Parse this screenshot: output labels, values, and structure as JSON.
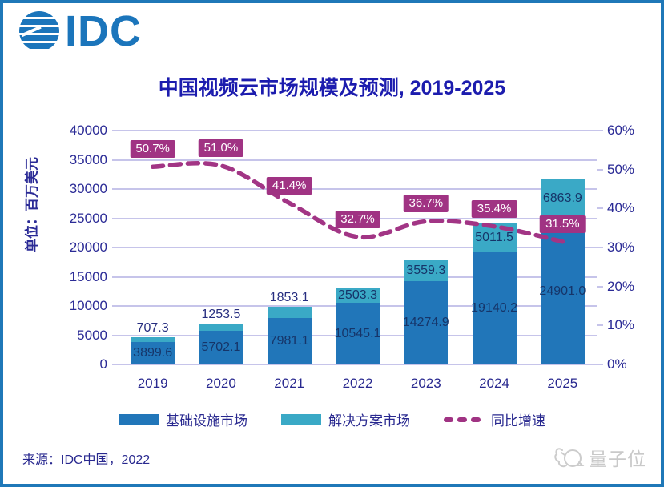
{
  "logo": {
    "text": "IDC"
  },
  "title": "中国视频云市场规模及预测, 2019-2025",
  "source": "来源：IDC中国，2022",
  "watermark": {
    "text": "量子位",
    "icon": "qbitai-bird-icon"
  },
  "colors": {
    "infra": "#2176b9",
    "solution": "#3aa9c6",
    "growth": "#a23585",
    "label_box": "#a03383",
    "grid": "#c6c4ea",
    "axis_text": "#2b2b96",
    "title_text": "#1c1cae",
    "border": "#1f78b8",
    "logo_blue": "#1b75bb",
    "watermark_gray": "#c9c9c9"
  },
  "chart_data": {
    "type": "bar",
    "subtype": "stacked-bar-with-line",
    "title": "中国视频云市场规模及预测, 2019-2025",
    "categories": [
      "2019",
      "2020",
      "2021",
      "2022",
      "2023",
      "2024",
      "2025"
    ],
    "series": [
      {
        "name": "基础设施市场",
        "kind": "bar",
        "axis": "left",
        "values": [
          3899.6,
          5702.1,
          7981.1,
          10545.1,
          14274.9,
          19140.2,
          24901.0
        ]
      },
      {
        "name": "解决方案市场",
        "kind": "bar",
        "axis": "left",
        "values": [
          707.3,
          1253.5,
          1853.1,
          2503.3,
          3559.3,
          5011.5,
          6863.9
        ]
      },
      {
        "name": "同比增速",
        "kind": "line",
        "axis": "right",
        "suffix": "%",
        "values": [
          50.7,
          51.0,
          41.4,
          32.7,
          36.7,
          35.4,
          31.5
        ]
      }
    ],
    "xlabel": "",
    "ylabel": "单位：百万美元",
    "ylim": [
      0,
      40000
    ],
    "ytick_step": 5000,
    "y2lim": [
      0,
      60
    ],
    "y2tick_step": 10,
    "y2suffix": "%",
    "grid": true,
    "legend_position": "bottom"
  }
}
